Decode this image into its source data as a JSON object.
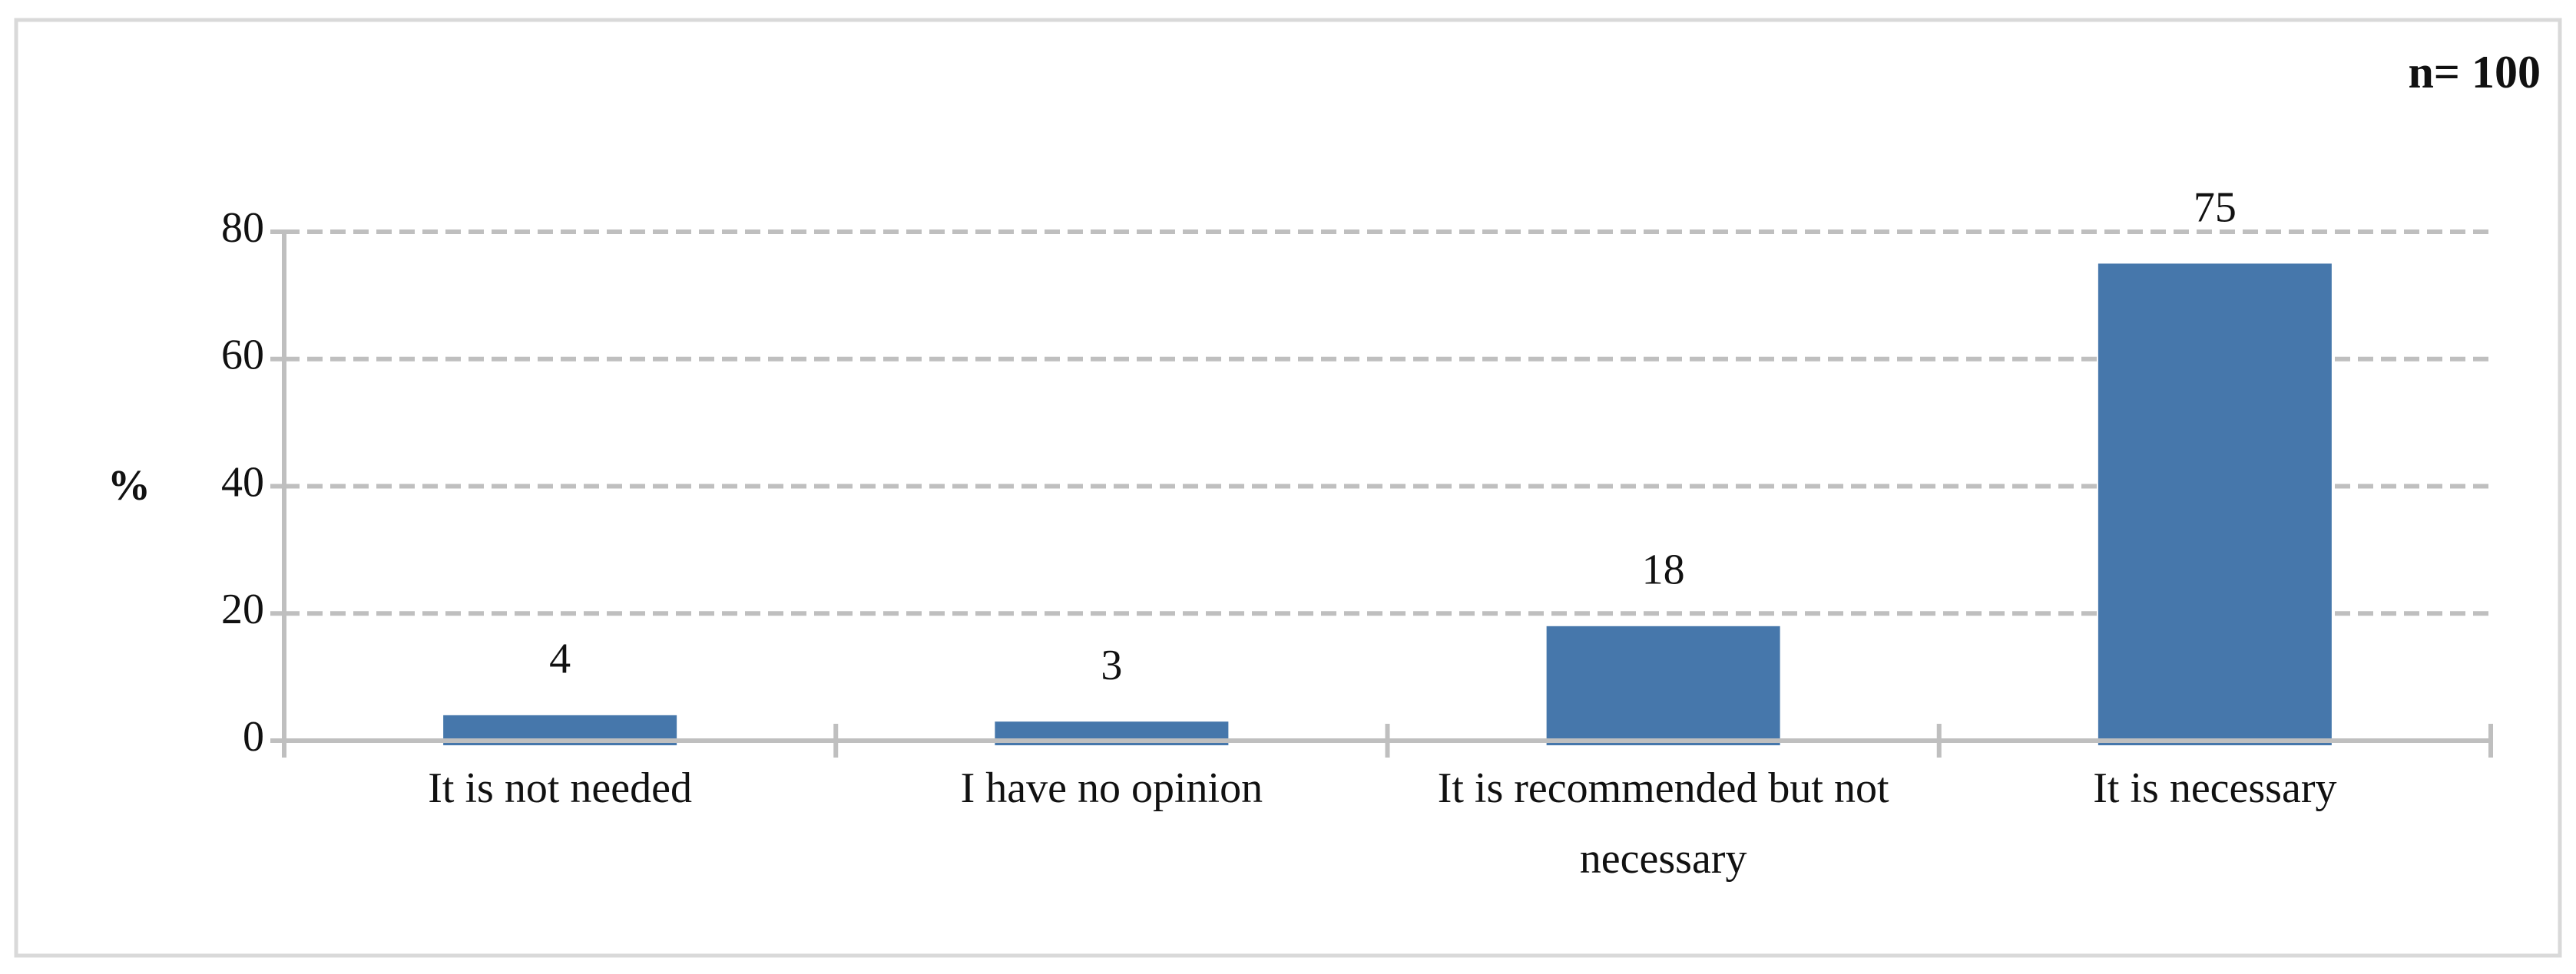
{
  "chart_data": {
    "type": "bar",
    "annotation": "n= 100",
    "y_label": "%",
    "categories": [
      "It is not needed",
      "I have no opinion",
      "It is recommended but not necessary",
      "It is necessary"
    ],
    "values": [
      4,
      3,
      18,
      75
    ],
    "color": "#4677ab",
    "ylim": [
      0,
      80
    ],
    "yticks": [
      0,
      20,
      40,
      60,
      80
    ],
    "grid": true
  }
}
